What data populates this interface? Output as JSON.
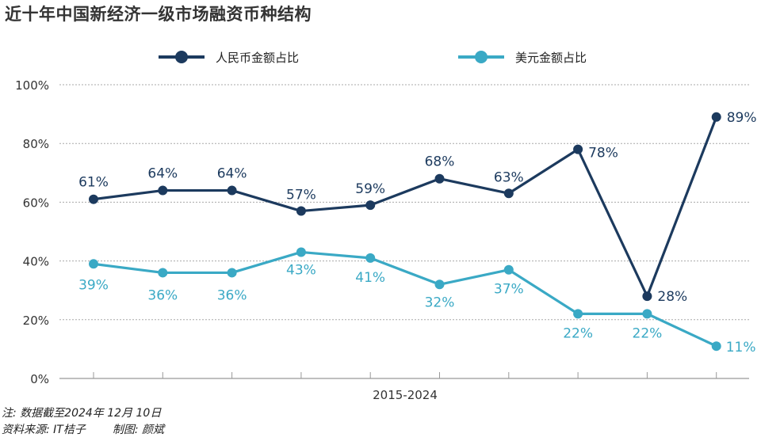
{
  "title": "近十年中国新经济一级市场融资币种结构",
  "notes": {
    "line1": "注: 数据截至2024年 12月 10日",
    "source": "资料来源: IT桔子",
    "credit": "制图: 颜斌"
  },
  "colors": {
    "rmb": "#1c3a5e",
    "usd": "#3aa9c5",
    "grid": "#aaaaaa",
    "axis_text": "#333333"
  },
  "chart_data": {
    "type": "line",
    "title": "近十年中国新经济一级市场融资币种结构",
    "xlabel": "2015-2024",
    "ylabel": "",
    "ylim": [
      0,
      100
    ],
    "yticks": [
      "0%",
      "20%",
      "40%",
      "60%",
      "80%",
      "100%"
    ],
    "ytick_values": [
      0,
      20,
      40,
      60,
      80,
      100
    ],
    "x": [
      1,
      2,
      3,
      4,
      5,
      6,
      7,
      8,
      9,
      10
    ],
    "grid": true,
    "legend_position": "top",
    "series": [
      {
        "name": "人民币金额占比",
        "color": "#1c3a5e",
        "values": [
          61,
          64,
          64,
          57,
          59,
          68,
          63,
          78,
          28,
          89
        ],
        "labels": [
          "61%",
          "64%",
          "64%",
          "57%",
          "59%",
          "68%",
          "63%",
          "78%",
          "28%",
          "89%"
        ]
      },
      {
        "name": "美元金额占比",
        "color": "#3aa9c5",
        "values": [
          39,
          36,
          36,
          43,
          41,
          32,
          37,
          22,
          22,
          11
        ],
        "labels": [
          "39%",
          "36%",
          "36%",
          "43%",
          "41%",
          "32%",
          "37%",
          "22%",
          "22%",
          "11%"
        ]
      }
    ]
  }
}
